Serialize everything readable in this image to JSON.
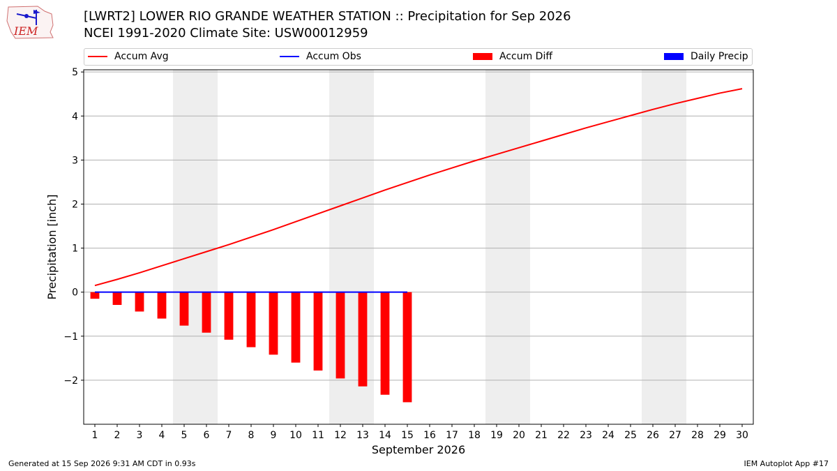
{
  "header": {
    "logo_text": "IEM",
    "title_line1": "[LWRT2] LOWER RIO GRANDE WEATHER STATION :: Precipitation for Sep 2026",
    "title_line2": "NCEI 1991-2020 Climate Site: USW00012959"
  },
  "legend": {
    "items": [
      {
        "label": "Accum Avg",
        "color": "#ff0000",
        "kind": "line"
      },
      {
        "label": "Accum Obs",
        "color": "#0000ff",
        "kind": "line"
      },
      {
        "label": "Accum Diff",
        "color": "#ff0000",
        "kind": "box"
      },
      {
        "label": "Daily Precip",
        "color": "#0000ff",
        "kind": "box"
      }
    ]
  },
  "footer": {
    "left": "Generated at 15 Sep 2026 9:31 AM CDT in 0.93s",
    "right": "IEM Autoplot App #17"
  },
  "chart_data": {
    "type": "bar",
    "xlabel": "September 2026",
    "ylabel": "Precipitation [inch]",
    "xlim": [
      0.5,
      30.5
    ],
    "ylim": [
      -3.0,
      5.05
    ],
    "yticks": [
      -2,
      -1,
      0,
      1,
      2,
      3,
      4,
      5
    ],
    "ytick_labels": [
      "−2",
      "−1",
      "0",
      "1",
      "2",
      "3",
      "4",
      "5"
    ],
    "days": [
      1,
      2,
      3,
      4,
      5,
      6,
      7,
      8,
      9,
      10,
      11,
      12,
      13,
      14,
      15,
      16,
      17,
      18,
      19,
      20,
      21,
      22,
      23,
      24,
      25,
      26,
      27,
      28,
      29,
      30
    ],
    "weekend_days": [
      5,
      6,
      12,
      13,
      19,
      20,
      26,
      27
    ],
    "grid": "horizontal",
    "series": [
      {
        "name": "Accum Avg",
        "type": "line",
        "color": "#ff0000",
        "x": [
          1,
          2,
          3,
          4,
          5,
          6,
          7,
          8,
          9,
          10,
          11,
          12,
          13,
          14,
          15,
          16,
          17,
          18,
          19,
          20,
          21,
          22,
          23,
          24,
          25,
          26,
          27,
          28,
          29,
          30
        ],
        "values": [
          0.15,
          0.29,
          0.44,
          0.6,
          0.76,
          0.92,
          1.08,
          1.25,
          1.42,
          1.6,
          1.78,
          1.96,
          2.14,
          2.32,
          2.49,
          2.66,
          2.82,
          2.98,
          3.13,
          3.28,
          3.43,
          3.58,
          3.73,
          3.87,
          4.01,
          4.15,
          4.28,
          4.4,
          4.52,
          4.62
        ]
      },
      {
        "name": "Accum Obs",
        "type": "line",
        "color": "#0000ff",
        "x": [
          1,
          2,
          3,
          4,
          5,
          6,
          7,
          8,
          9,
          10,
          11,
          12,
          13,
          14,
          15
        ],
        "values": [
          0,
          0,
          0,
          0,
          0,
          0,
          0,
          0,
          0,
          0,
          0,
          0,
          0,
          0,
          0
        ]
      },
      {
        "name": "Accum Diff",
        "type": "bar",
        "color": "#ff0000",
        "x": [
          1,
          2,
          3,
          4,
          5,
          6,
          7,
          8,
          9,
          10,
          11,
          12,
          13,
          14,
          15
        ],
        "values": [
          -0.15,
          -0.29,
          -0.44,
          -0.6,
          -0.76,
          -0.92,
          -1.08,
          -1.25,
          -1.42,
          -1.6,
          -1.78,
          -1.96,
          -2.14,
          -2.33,
          -2.5
        ]
      },
      {
        "name": "Daily Precip",
        "type": "bar",
        "color": "#0000ff",
        "x": [
          1,
          2,
          3,
          4,
          5,
          6,
          7,
          8,
          9,
          10,
          11,
          12,
          13,
          14,
          15
        ],
        "values": [
          0,
          0,
          0,
          0,
          0,
          0,
          0,
          0,
          0,
          0,
          0,
          0,
          0,
          0,
          0
        ]
      }
    ]
  }
}
